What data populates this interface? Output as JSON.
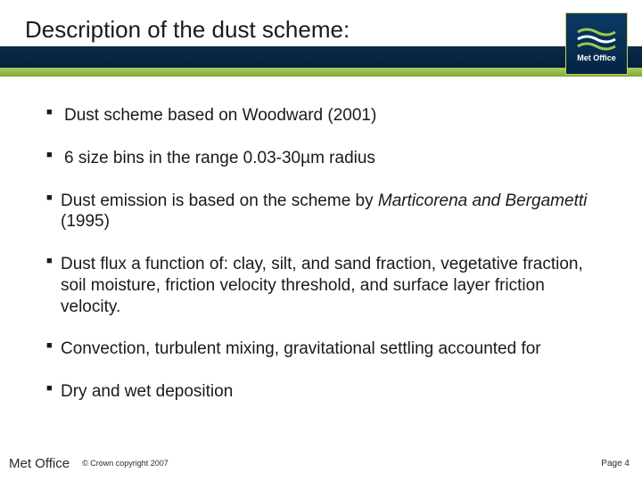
{
  "header": {
    "title": "Description of the dust scheme:",
    "logo_text": "Met Office",
    "colors": {
      "stripe_dark_top": "#0a2a4a",
      "stripe_dark_bottom": "#072138",
      "stripe_green_top": "#a8d060",
      "stripe_green_bottom": "#7fa838",
      "logo_bg_top": "#0b3a66",
      "logo_bg_bottom": "#052542",
      "logo_border": "#c8d060",
      "wave_green": "#9cc850",
      "wave_white": "#ffffff"
    }
  },
  "bullets": [
    {
      "text": "Dust scheme based on Woodward (2001)"
    },
    {
      "text": "6 size bins in the range 0.03-30µm radius"
    },
    {
      "html": "Dust emission is based on the scheme by <span class=\"italic\">Marticorena and Bergametti</span> (1995)"
    },
    {
      "text": "Dust flux a function of: clay, silt, and sand fraction, vegetative fraction, soil moisture, friction velocity threshold, and surface layer friction velocity."
    },
    {
      "text": "Convection, turbulent mixing, gravitational settling accounted for"
    },
    {
      "text": "Dry and wet deposition"
    }
  ],
  "footer": {
    "left": "Met Office",
    "copyright": "© Crown copyright 2007",
    "page": "Page 4"
  },
  "typography": {
    "title_fontsize": 26,
    "bullet_fontsize": 19,
    "footer_left_fontsize": 15,
    "footer_copy_fontsize": 9,
    "footer_page_fontsize": 10
  }
}
